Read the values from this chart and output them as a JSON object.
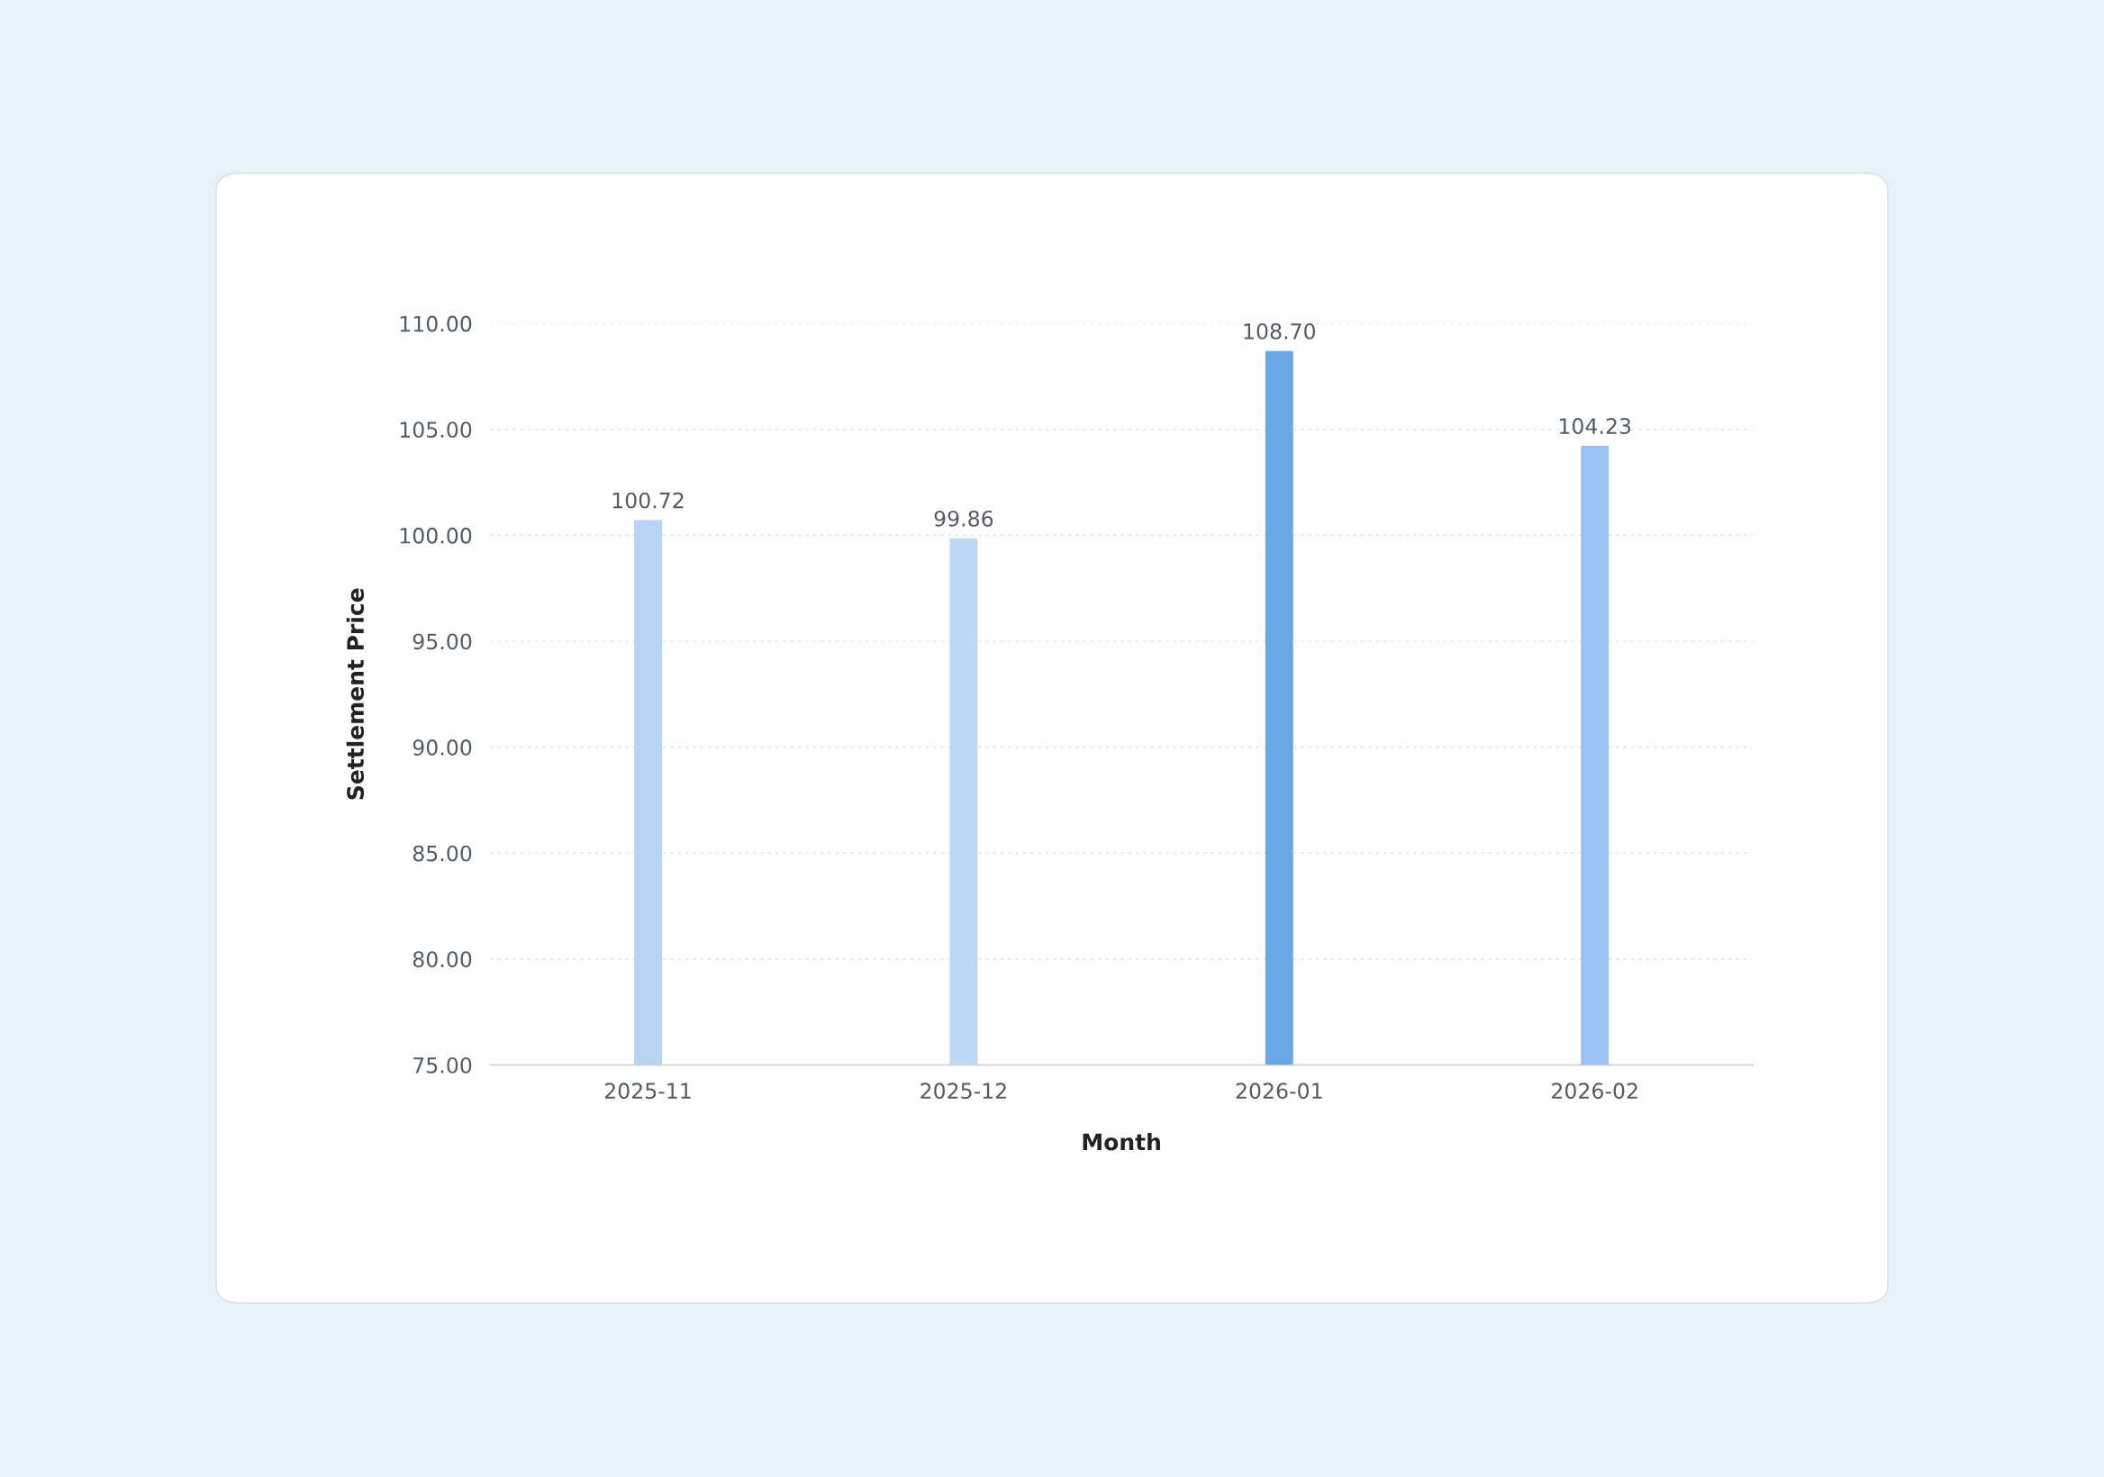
{
  "chart_data": {
    "type": "bar",
    "xlabel": "Month",
    "ylabel": "Settlement Price",
    "categories": [
      "2025-11",
      "2025-12",
      "2026-01",
      "2026-02"
    ],
    "values": [
      100.72,
      99.86,
      108.7,
      104.23
    ],
    "value_labels": [
      "100.72",
      "99.86",
      "108.70",
      "104.23"
    ],
    "colors": [
      "#b8d4f3",
      "#bdd8f5",
      "#6aa7e8",
      "#97c1f0"
    ],
    "ylim": [
      75,
      110
    ],
    "yticks": [
      {
        "value": 75,
        "label": "75.00"
      },
      {
        "value": 80,
        "label": "80.00"
      },
      {
        "value": 85,
        "label": "85.00"
      },
      {
        "value": 90,
        "label": "90.00"
      },
      {
        "value": 95,
        "label": "95.00"
      },
      {
        "value": 100,
        "label": "100.00"
      },
      {
        "value": 105,
        "label": "105.00"
      },
      {
        "value": 110,
        "label": "110.00"
      }
    ],
    "grid": "y",
    "legend": false
  }
}
